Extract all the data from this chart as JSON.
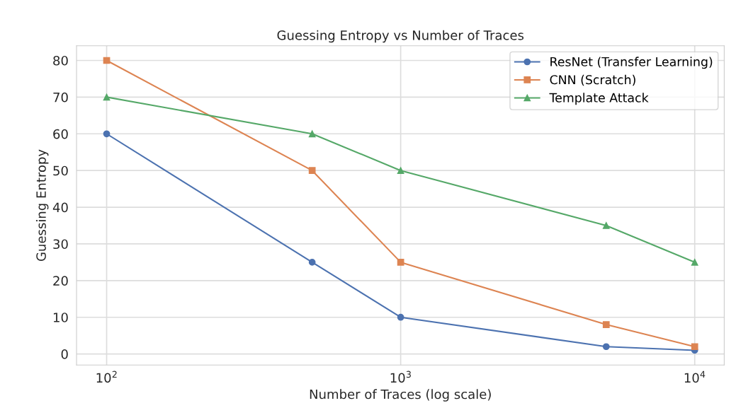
{
  "chart_data": {
    "type": "line",
    "title": "Guessing Entropy vs Number of Traces",
    "xlabel": "Number of Traces (log scale)",
    "ylabel": "Guessing Entropy",
    "x": [
      100,
      500,
      1000,
      5000,
      10000
    ],
    "series": [
      {
        "name": "ResNet (Transfer Learning)",
        "color": "#4c72b0",
        "marker": "circle",
        "values": [
          60,
          25,
          10,
          2,
          1
        ]
      },
      {
        "name": "CNN (Scratch)",
        "color": "#dd8452",
        "marker": "square",
        "values": [
          80,
          50,
          25,
          8,
          2
        ]
      },
      {
        "name": "Template Attack",
        "color": "#55a868",
        "marker": "triangle",
        "values": [
          70,
          60,
          50,
          35,
          25
        ]
      }
    ],
    "log": "x",
    "xlim": [
      79,
      12600
    ],
    "xticks": [
      {
        "value": 100,
        "label": "10$^{2}$"
      },
      {
        "value": 1000,
        "label": "10$^{3}$"
      },
      {
        "value": 10000,
        "label": "10$^{4}$"
      }
    ],
    "ylim": [
      -3,
      84
    ],
    "yticks": [
      0,
      10,
      20,
      30,
      40,
      50,
      60,
      70,
      80
    ],
    "grid": true,
    "legend": "top right",
    "line_style": "solid"
  }
}
